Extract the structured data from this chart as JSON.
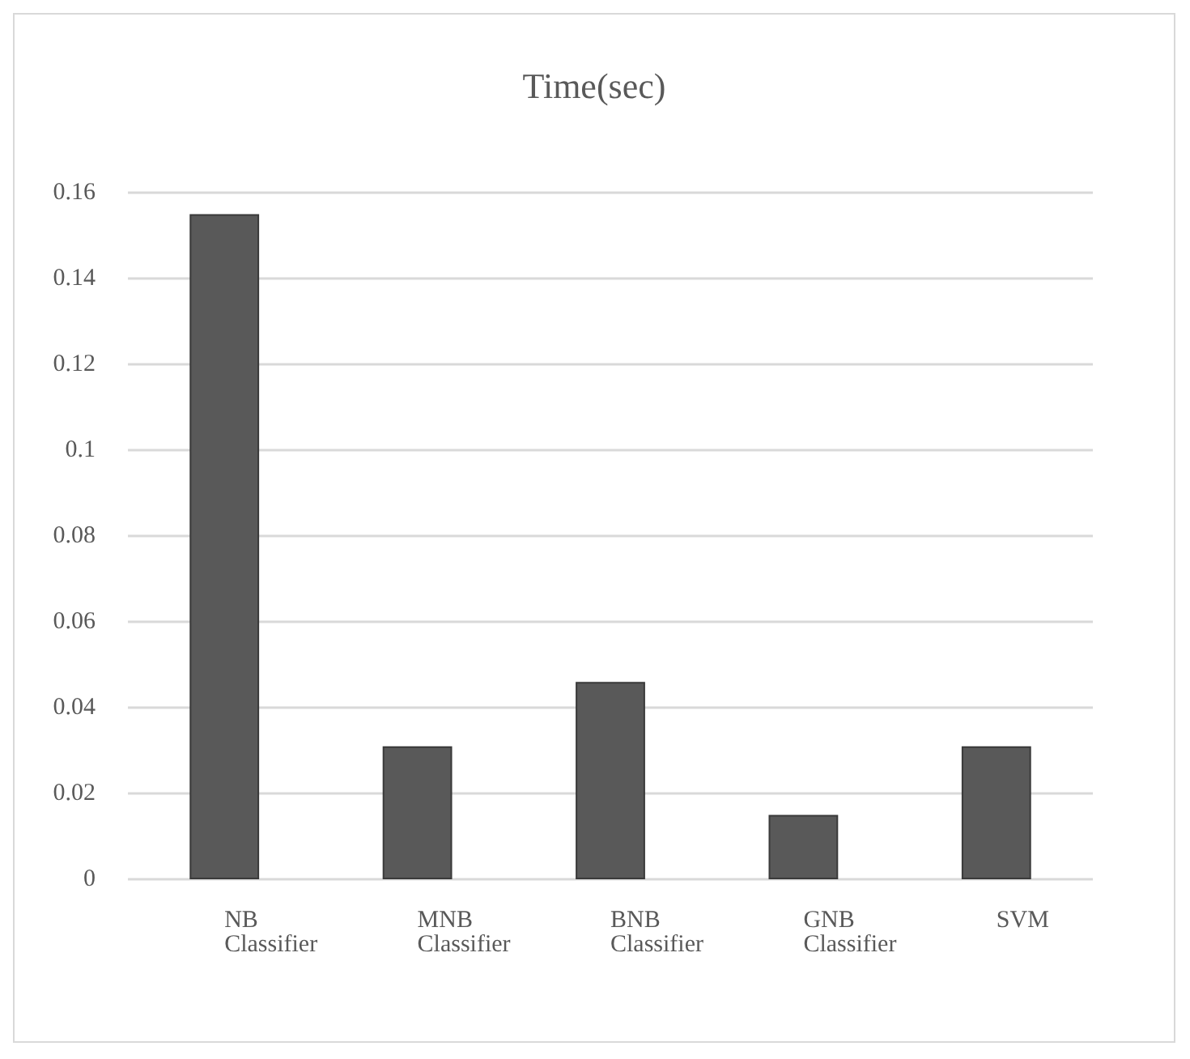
{
  "chart_data": {
    "type": "bar",
    "title": "Time(sec)",
    "categories": [
      "NB Classifier",
      "MNB Classifier",
      "BNB Classifier",
      "GNB Classifier",
      "SVM"
    ],
    "values": [
      0.155,
      0.031,
      0.046,
      0.015,
      0.031
    ],
    "color": "#595959",
    "ylim": [
      0,
      0.16
    ],
    "yticks": [
      0,
      0.02,
      0.04,
      0.06,
      0.08,
      0.1,
      0.12,
      0.14,
      0.16
    ],
    "grid": "y"
  }
}
